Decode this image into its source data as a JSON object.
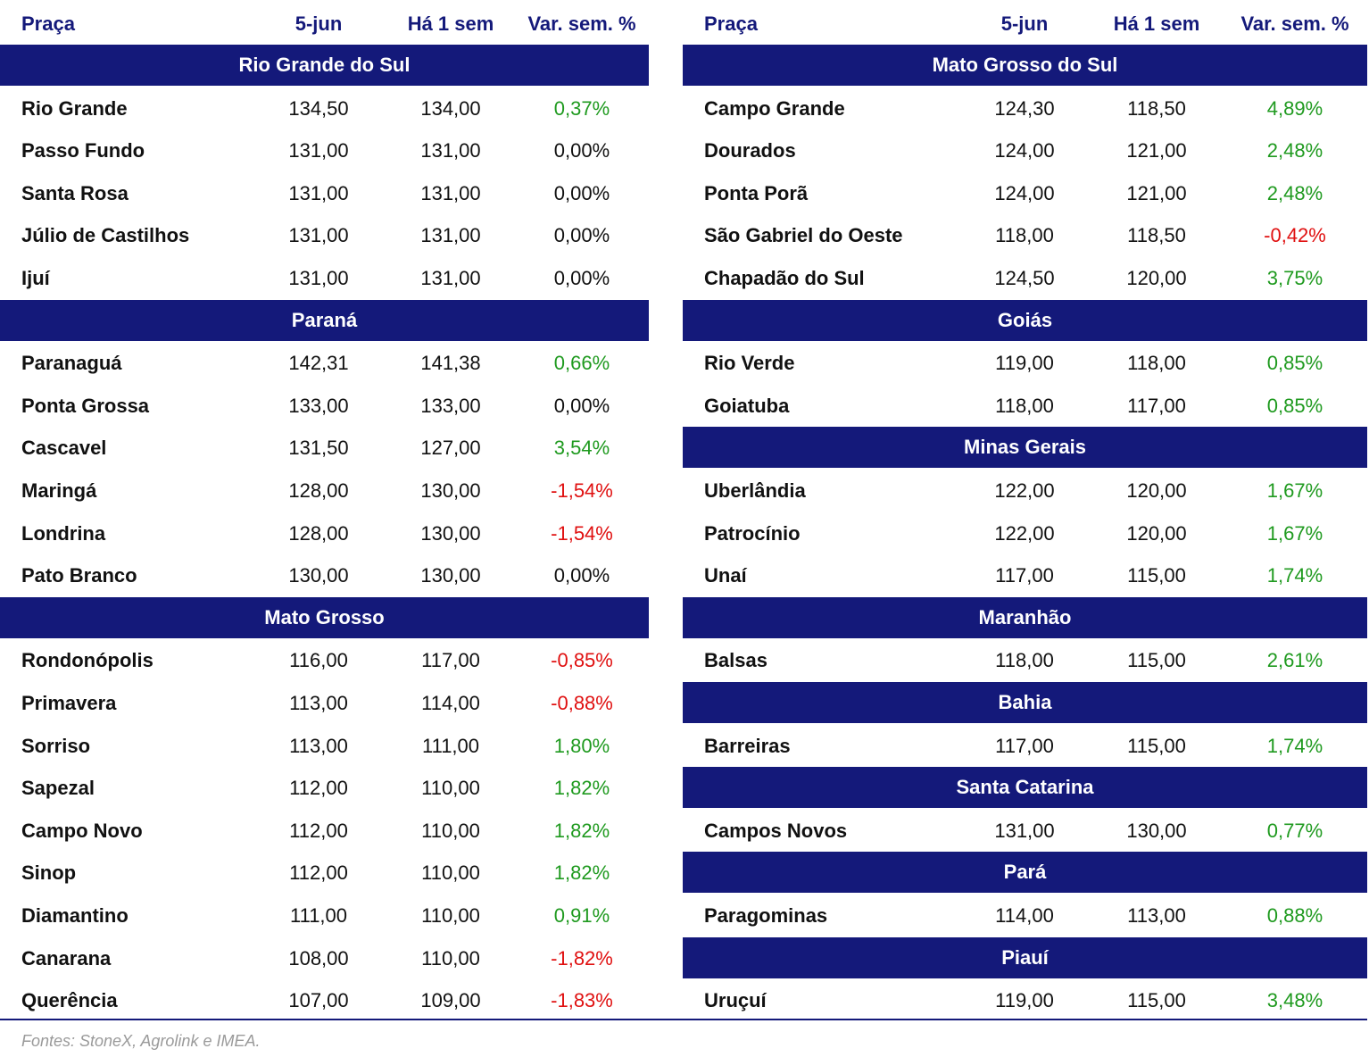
{
  "tables": [
    {
      "header": [
        "Praça",
        "5-jun",
        "Há 1 sem",
        "Var. sem. %"
      ],
      "sections": [
        {
          "name": "Rio Grande do Sul",
          "rows": [
            [
              "Rio Grande",
              "134,50",
              "134,00",
              "0,37%"
            ],
            [
              "Passo Fundo",
              "131,00",
              "131,00",
              "0,00%"
            ],
            [
              "Santa Rosa",
              "131,00",
              "131,00",
              "0,00%"
            ],
            [
              "Júlio de Castilhos",
              "131,00",
              "131,00",
              "0,00%"
            ],
            [
              "Ijuí",
              "131,00",
              "131,00",
              "0,00%"
            ]
          ]
        },
        {
          "name": "Paraná",
          "rows": [
            [
              "Paranaguá",
              "142,31",
              "141,38",
              "0,66%"
            ],
            [
              "Ponta Grossa",
              "133,00",
              "133,00",
              "0,00%"
            ],
            [
              "Cascavel",
              "131,50",
              "127,00",
              "3,54%"
            ],
            [
              "Maringá",
              "128,00",
              "130,00",
              "-1,54%"
            ],
            [
              "Londrina",
              "128,00",
              "130,00",
              "-1,54%"
            ],
            [
              "Pato Branco",
              "130,00",
              "130,00",
              "0,00%"
            ]
          ]
        },
        {
          "name": "Mato Grosso",
          "rows": [
            [
              "Rondonópolis",
              "116,00",
              "117,00",
              "-0,85%"
            ],
            [
              "Primavera",
              "113,00",
              "114,00",
              "-0,88%"
            ],
            [
              "Sorriso",
              "113,00",
              "111,00",
              "1,80%"
            ],
            [
              "Sapezal",
              "112,00",
              "110,00",
              "1,82%"
            ],
            [
              "Campo Novo",
              "112,00",
              "110,00",
              "1,82%"
            ],
            [
              "Sinop",
              "112,00",
              "110,00",
              "1,82%"
            ],
            [
              "Diamantino",
              "111,00",
              "110,00",
              "0,91%"
            ],
            [
              "Canarana",
              "108,00",
              "110,00",
              "-1,82%"
            ],
            [
              "Querência",
              "107,00",
              "109,00",
              "-1,83%"
            ]
          ]
        }
      ]
    },
    {
      "header": [
        "Praça",
        "5-jun",
        "Há 1 sem",
        "Var. sem. %"
      ],
      "sections": [
        {
          "name": "Mato Grosso do Sul",
          "rows": [
            [
              "Campo Grande",
              "124,30",
              "118,50",
              "4,89%"
            ],
            [
              "Dourados",
              "124,00",
              "121,00",
              "2,48%"
            ],
            [
              "Ponta Porã",
              "124,00",
              "121,00",
              "2,48%"
            ],
            [
              "São Gabriel do Oeste",
              "118,00",
              "118,50",
              "-0,42%"
            ],
            [
              "Chapadão do Sul",
              "124,50",
              "120,00",
              "3,75%"
            ]
          ]
        },
        {
          "name": "Goiás",
          "rows": [
            [
              "Rio Verde",
              "119,00",
              "118,00",
              "0,85%"
            ],
            [
              "Goiatuba",
              "118,00",
              "117,00",
              "0,85%"
            ]
          ]
        },
        {
          "name": "Minas Gerais",
          "rows": [
            [
              "Uberlândia",
              "122,00",
              "120,00",
              "1,67%"
            ],
            [
              "Patrocínio",
              "122,00",
              "120,00",
              "1,67%"
            ],
            [
              "Unaí",
              "117,00",
              "115,00",
              "1,74%"
            ]
          ]
        },
        {
          "name": "Maranhão",
          "rows": [
            [
              "Balsas",
              "118,00",
              "115,00",
              "2,61%"
            ]
          ]
        },
        {
          "name": "Bahia",
          "rows": [
            [
              "Barreiras",
              "117,00",
              "115,00",
              "1,74%"
            ]
          ]
        },
        {
          "name": "Santa Catarina",
          "rows": [
            [
              "Campos Novos",
              "131,00",
              "130,00",
              "0,77%"
            ]
          ]
        },
        {
          "name": "Pará",
          "rows": [
            [
              "Paragominas",
              "114,00",
              "113,00",
              "0,88%"
            ]
          ]
        },
        {
          "name": "Piauí",
          "rows": [
            [
              "Uruçuí",
              "119,00",
              "115,00",
              "3,48%"
            ]
          ]
        }
      ]
    }
  ],
  "source": "Fontes: StoneX, Agrolink e IMEA."
}
